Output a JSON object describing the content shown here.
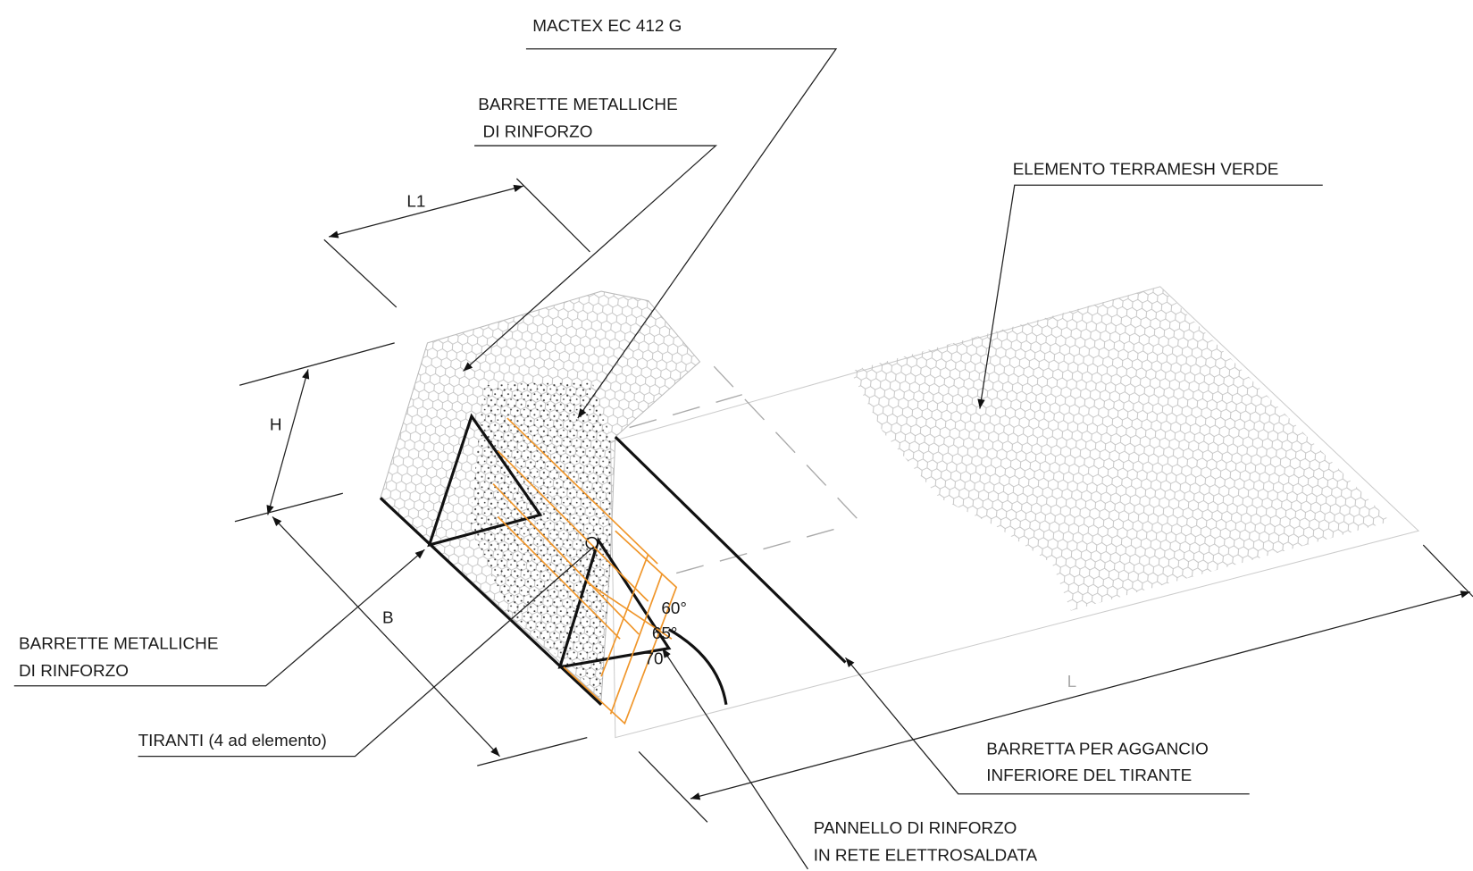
{
  "labels": {
    "mactex": "MACTEX EC 412 G",
    "barrette_top": [
      "BARRETTE METALLICHE",
      " DI RINFORZO"
    ],
    "elemento": "ELEMENTO TERRAMESH VERDE",
    "barrette_left": [
      "BARRETTE METALLICHE",
      "DI RINFORZO"
    ],
    "tiranti": "TIRANTI (4 ad elemento)",
    "barretta": [
      "BARRETTA PER AGGANCIO",
      "INFERIORE DEL TIRANTE"
    ],
    "pannello": [
      "PANNELLO DI RINFORZO",
      "IN RETE ELETTROSALDATA"
    ],
    "dim_l1": "L1",
    "dim_h": "H",
    "dim_b": "B",
    "dim_l": "L",
    "angles": [
      "60°",
      "65°",
      "70°"
    ]
  }
}
